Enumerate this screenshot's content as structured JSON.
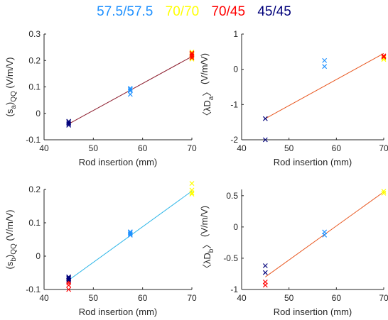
{
  "legend": [
    {
      "label": "57.5/57.5",
      "color": "#1e90ff"
    },
    {
      "label": "70/70",
      "color": "#ffff00"
    },
    {
      "label": "70/45",
      "color": "#ff0000"
    },
    {
      "label": "45/45",
      "color": "#00007a"
    }
  ],
  "chart_data": [
    {
      "type": "scatter",
      "ylabel_main": "(s",
      "ylabel_sub": "a",
      "ylabel_close": ")",
      "ylabel_qq": "QQ",
      "ylabel_units": "(V/m/V)",
      "xlabel": "Rod insertion (mm)",
      "xlim": [
        40,
        70
      ],
      "ylim": [
        -0.1,
        0.3
      ],
      "xticks": [
        40,
        50,
        60,
        70
      ],
      "yticks": [
        -0.1,
        0,
        0.1,
        0.2,
        0.3
      ],
      "fit": {
        "x": [
          45,
          70
        ],
        "y": [
          -0.04,
          0.215
        ],
        "color": "#8b1a2b"
      },
      "series": [
        {
          "name": "57.5/57.5",
          "color": "#1e90ff",
          "x": [
            57.5,
            57.5,
            57.5,
            57.5
          ],
          "y": [
            0.095,
            0.09,
            0.085,
            0.072
          ]
        },
        {
          "name": "70/70",
          "color": "#ffff00",
          "x": [
            70,
            70,
            70,
            70
          ],
          "y": [
            0.232,
            0.225,
            0.212,
            0.205
          ]
        },
        {
          "name": "70/45",
          "color": "#ff0000",
          "x": [
            70,
            70,
            70,
            70
          ],
          "y": [
            0.228,
            0.222,
            0.216,
            0.21
          ]
        },
        {
          "name": "45/45",
          "color": "#00007a",
          "x": [
            45,
            45,
            45,
            45
          ],
          "y": [
            -0.03,
            -0.035,
            -0.04,
            -0.045
          ]
        }
      ]
    },
    {
      "type": "scatter",
      "ylabel_main": "〈λD",
      "ylabel_sub": "a",
      "ylabel_close": "〉",
      "ylabel_qq": "",
      "ylabel_units": "(V/m/V)",
      "xlabel": "Rod insertion (mm)",
      "xlim": [
        40,
        70
      ],
      "ylim": [
        -2,
        1
      ],
      "xticks": [
        40,
        50,
        60,
        70
      ],
      "yticks": [
        -2,
        -1,
        0,
        1
      ],
      "fit": {
        "x": [
          45,
          70
        ],
        "y": [
          -1.4,
          0.45
        ],
        "color": "#e8541c"
      },
      "series": [
        {
          "name": "57.5/57.5",
          "color": "#1e90ff",
          "x": [
            57.5,
            57.5
          ],
          "y": [
            0.25,
            0.08
          ]
        },
        {
          "name": "70/70",
          "color": "#ffff00",
          "x": [
            70,
            70
          ],
          "y": [
            0.32,
            0.28
          ]
        },
        {
          "name": "70/45",
          "color": "#ff0000",
          "x": [
            70,
            70
          ],
          "y": [
            0.38,
            0.35
          ]
        },
        {
          "name": "45/45",
          "color": "#00007a",
          "x": [
            45,
            45
          ],
          "y": [
            -1.4,
            -2.0
          ]
        }
      ]
    },
    {
      "type": "scatter",
      "ylabel_main": "(s",
      "ylabel_sub": "b",
      "ylabel_close": ")",
      "ylabel_qq": "QQ",
      "ylabel_units": "(V/m/V)",
      "xlabel": "Rod insertion (mm)",
      "xlim": [
        40,
        70
      ],
      "ylim": [
        -0.1,
        0.2
      ],
      "xticks": [
        40,
        50,
        60,
        70
      ],
      "yticks": [
        -0.1,
        0,
        0.1,
        0.2
      ],
      "fit": {
        "x": [
          45,
          70
        ],
        "y": [
          -0.072,
          0.195
        ],
        "color": "#2db6e8"
      },
      "series": [
        {
          "name": "57.5/57.5",
          "color": "#1e90ff",
          "x": [
            57.5,
            57.5,
            57.5,
            57.5
          ],
          "y": [
            0.073,
            0.07,
            0.066,
            0.063
          ]
        },
        {
          "name": "70/70",
          "color": "#ffff00",
          "x": [
            70,
            70,
            70,
            70
          ],
          "y": [
            0.218,
            0.198,
            0.19,
            0.186
          ]
        },
        {
          "name": "70/45",
          "color": "#ff0000",
          "x": [
            45,
            45,
            45,
            45
          ],
          "y": [
            -0.075,
            -0.08,
            -0.087,
            -0.1
          ]
        },
        {
          "name": "45/45",
          "color": "#00007a",
          "x": [
            45,
            45,
            45,
            45
          ],
          "y": [
            -0.062,
            -0.065,
            -0.068,
            -0.072
          ]
        }
      ]
    },
    {
      "type": "scatter",
      "ylabel_main": "〈λD",
      "ylabel_sub": "b",
      "ylabel_close": "〉",
      "ylabel_qq": "",
      "ylabel_units": "(V/m/V)",
      "xlabel": "Rod insertion (mm)",
      "xlim": [
        40,
        70
      ],
      "ylim": [
        -1,
        0.6
      ],
      "xticks": [
        40,
        50,
        60,
        70
      ],
      "yticks": [
        -1,
        -0.5,
        0,
        0.5
      ],
      "fit": {
        "x": [
          45,
          70
        ],
        "y": [
          -0.8,
          0.56
        ],
        "color": "#e8541c"
      },
      "series": [
        {
          "name": "57.5/57.5",
          "color": "#1e90ff",
          "x": [
            57.5,
            57.5
          ],
          "y": [
            -0.08,
            -0.13
          ]
        },
        {
          "name": "70/70",
          "color": "#ffff00",
          "x": [
            70,
            70
          ],
          "y": [
            0.57,
            0.54
          ]
        },
        {
          "name": "70/45",
          "color": "#ff0000",
          "x": [
            45,
            45
          ],
          "y": [
            -0.88,
            -0.93
          ]
        },
        {
          "name": "45/45",
          "color": "#00007a",
          "x": [
            45,
            45
          ],
          "y": [
            -0.62,
            -0.73
          ]
        }
      ]
    }
  ]
}
